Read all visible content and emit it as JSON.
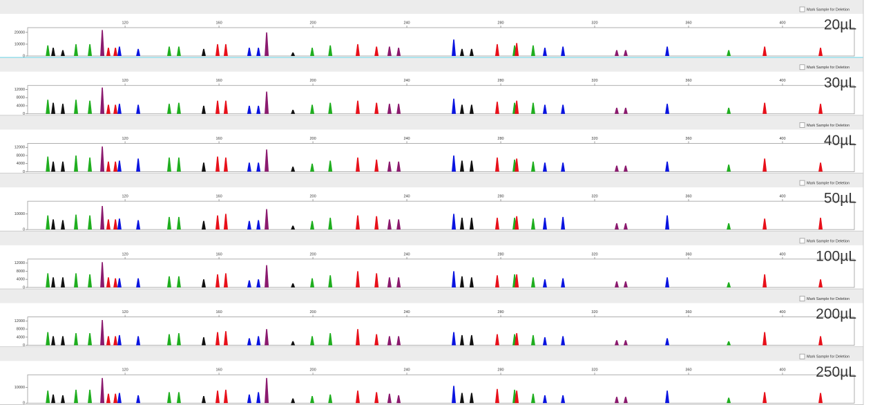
{
  "chart_data": [
    {
      "type": "peak",
      "checkbox_label": "Mark Sample for Deletion",
      "annotation": "20µL",
      "xlim": [
        78.5,
        430.6
      ],
      "xticks": [
        120,
        160,
        200,
        240,
        280,
        320,
        360,
        400
      ],
      "ylim": [
        0,
        24000
      ],
      "yticks": [
        0,
        10000,
        20000
      ],
      "x": [
        87.1,
        89.4,
        93.5,
        99.1,
        105,
        110.3,
        112.9,
        115.9,
        117.6,
        125.6,
        138.8,
        142.9,
        153.5,
        159.4,
        162.9,
        172.9,
        176.8,
        180.3,
        191.5,
        199.7,
        207.4,
        219.1,
        227.1,
        232.6,
        236.5,
        260,
        263.5,
        267.6,
        278.5,
        285.9,
        286.8,
        293.8,
        298.8,
        306.5,
        329.4,
        333.2,
        350.9,
        377.1,
        392.4,
        416.2
      ],
      "values": [
        9000,
        7000,
        5000,
        10000,
        10000,
        22000,
        7000,
        7000,
        8000,
        6000,
        8000,
        8000,
        6000,
        10000,
        10000,
        7000,
        7000,
        20000,
        3000,
        7000,
        9000,
        10000,
        8000,
        8000,
        7000,
        14000,
        6000,
        6000,
        10000,
        9000,
        11000,
        9000,
        7000,
        8000,
        5000,
        5000,
        8000,
        5000,
        8000,
        7000
      ],
      "colors": [
        "#1fae1f",
        "#111111",
        "#111111",
        "#1fae1f",
        "#1fae1f",
        "#8b1a6e",
        "#e8101a",
        "#e8101a",
        "#0a14e0",
        "#0a14e0",
        "#1fae1f",
        "#1fae1f",
        "#111111",
        "#e8101a",
        "#e8101a",
        "#0a14e0",
        "#0a14e0",
        "#8b1a6e",
        "#111111",
        "#1fae1f",
        "#1fae1f",
        "#e8101a",
        "#e8101a",
        "#8b1a6e",
        "#8b1a6e",
        "#0a14e0",
        "#111111",
        "#111111",
        "#e8101a",
        "#1fae1f",
        "#e8101a",
        "#1fae1f",
        "#0a14e0",
        "#0a14e0",
        "#8b1a6e",
        "#8b1a6e",
        "#0a14e0",
        "#1fae1f",
        "#e8101a",
        "#e8101a"
      ]
    },
    {
      "type": "peak",
      "checkbox_label": "Mark Sample for Deletion",
      "annotation": "30µL",
      "xlim": [
        78.5,
        430.6
      ],
      "xticks": [
        120,
        160,
        200,
        240,
        280,
        320,
        360,
        400
      ],
      "ylim": [
        0,
        14000
      ],
      "yticks": [
        0,
        4000,
        8000,
        12000
      ],
      "x": [
        87.1,
        89.4,
        93.5,
        99.1,
        105,
        110.3,
        112.9,
        115.9,
        117.6,
        125.6,
        138.8,
        142.9,
        153.5,
        159.4,
        162.9,
        172.9,
        176.8,
        180.3,
        191.5,
        199.7,
        207.4,
        219.1,
        227.1,
        232.6,
        236.5,
        260,
        263.5,
        267.6,
        278.5,
        285.9,
        286.8,
        293.8,
        298.8,
        306.5,
        329.4,
        333.2,
        350.9,
        377.1,
        392.4,
        416.2
      ],
      "values": [
        7000,
        5500,
        5000,
        7000,
        6500,
        13000,
        4500,
        4500,
        5000,
        4500,
        5000,
        5500,
        4000,
        6500,
        6500,
        4000,
        4000,
        11000,
        2000,
        4500,
        5500,
        6500,
        5500,
        5000,
        5000,
        7500,
        4500,
        4500,
        6000,
        5500,
        6500,
        5500,
        4500,
        4500,
        3000,
        3000,
        5000,
        3000,
        5500,
        5000
      ],
      "colors": [
        "#1fae1f",
        "#111111",
        "#111111",
        "#1fae1f",
        "#1fae1f",
        "#8b1a6e",
        "#e8101a",
        "#e8101a",
        "#0a14e0",
        "#0a14e0",
        "#1fae1f",
        "#1fae1f",
        "#111111",
        "#e8101a",
        "#e8101a",
        "#0a14e0",
        "#0a14e0",
        "#8b1a6e",
        "#111111",
        "#1fae1f",
        "#1fae1f",
        "#e8101a",
        "#e8101a",
        "#8b1a6e",
        "#8b1a6e",
        "#0a14e0",
        "#111111",
        "#111111",
        "#e8101a",
        "#1fae1f",
        "#e8101a",
        "#1fae1f",
        "#0a14e0",
        "#0a14e0",
        "#8b1a6e",
        "#8b1a6e",
        "#0a14e0",
        "#1fae1f",
        "#e8101a",
        "#e8101a"
      ]
    },
    {
      "type": "peak",
      "checkbox_label": "Mark Sample for Deletion",
      "annotation": "40µL",
      "xlim": [
        78.5,
        430.6
      ],
      "xticks": [
        120,
        160,
        200,
        240,
        280,
        320,
        360,
        400
      ],
      "ylim": [
        0,
        14000
      ],
      "yticks": [
        0,
        4000,
        8000,
        12000
      ],
      "x": [
        87.1,
        89.4,
        93.5,
        99.1,
        105,
        110.3,
        112.9,
        115.9,
        117.6,
        125.6,
        138.8,
        142.9,
        153.5,
        159.4,
        162.9,
        172.9,
        176.8,
        180.3,
        191.5,
        199.7,
        207.4,
        219.1,
        227.1,
        232.6,
        236.5,
        260,
        263.5,
        267.6,
        278.5,
        285.9,
        286.8,
        293.8,
        298.8,
        306.5,
        329.4,
        333.2,
        350.9,
        377.1,
        392.4,
        416.2
      ],
      "values": [
        7500,
        5000,
        5000,
        8000,
        7000,
        12500,
        5000,
        5000,
        5500,
        6500,
        7000,
        7000,
        4500,
        7500,
        7000,
        4500,
        4500,
        11000,
        2500,
        4000,
        5500,
        7000,
        6000,
        5000,
        5000,
        8000,
        5500,
        5500,
        7000,
        6000,
        6500,
        5000,
        4500,
        4500,
        3000,
        3000,
        5000,
        3500,
        6500,
        4500
      ],
      "colors": [
        "#1fae1f",
        "#111111",
        "#111111",
        "#1fae1f",
        "#1fae1f",
        "#8b1a6e",
        "#e8101a",
        "#e8101a",
        "#0a14e0",
        "#0a14e0",
        "#1fae1f",
        "#1fae1f",
        "#111111",
        "#e8101a",
        "#e8101a",
        "#0a14e0",
        "#0a14e0",
        "#8b1a6e",
        "#111111",
        "#1fae1f",
        "#1fae1f",
        "#e8101a",
        "#e8101a",
        "#8b1a6e",
        "#8b1a6e",
        "#0a14e0",
        "#111111",
        "#111111",
        "#e8101a",
        "#1fae1f",
        "#e8101a",
        "#1fae1f",
        "#0a14e0",
        "#0a14e0",
        "#8b1a6e",
        "#8b1a6e",
        "#0a14e0",
        "#1fae1f",
        "#e8101a",
        "#e8101a"
      ]
    },
    {
      "type": "peak",
      "checkbox_label": "Mark Sample for Deletion",
      "annotation": "50µL",
      "xlim": [
        78.5,
        430.6
      ],
      "xticks": [
        120,
        160,
        200,
        240,
        280,
        320,
        360,
        400
      ],
      "ylim": [
        0,
        18000
      ],
      "yticks": [
        0,
        10000
      ],
      "x": [
        87.1,
        89.4,
        93.5,
        99.1,
        105,
        110.3,
        112.9,
        115.9,
        117.6,
        125.6,
        138.8,
        142.9,
        153.5,
        159.4,
        162.9,
        172.9,
        176.8,
        180.3,
        191.5,
        199.7,
        207.4,
        219.1,
        227.1,
        232.6,
        236.5,
        260,
        263.5,
        267.6,
        278.5,
        285.9,
        286.8,
        293.8,
        298.8,
        306.5,
        329.4,
        333.2,
        350.9,
        377.1,
        392.4,
        416.2
      ],
      "values": [
        9000,
        6500,
        6000,
        9500,
        9000,
        15000,
        6500,
        6500,
        7000,
        6000,
        8000,
        8000,
        5500,
        9000,
        10000,
        5500,
        6000,
        13000,
        2500,
        5500,
        7500,
        9000,
        8500,
        6500,
        6500,
        10000,
        7500,
        7500,
        7500,
        7500,
        8500,
        7000,
        7500,
        8000,
        4000,
        4000,
        9000,
        4000,
        7000,
        7500
      ],
      "colors": [
        "#1fae1f",
        "#111111",
        "#111111",
        "#1fae1f",
        "#1fae1f",
        "#8b1a6e",
        "#e8101a",
        "#e8101a",
        "#0a14e0",
        "#0a14e0",
        "#1fae1f",
        "#1fae1f",
        "#111111",
        "#e8101a",
        "#e8101a",
        "#0a14e0",
        "#0a14e0",
        "#8b1a6e",
        "#111111",
        "#1fae1f",
        "#1fae1f",
        "#e8101a",
        "#e8101a",
        "#8b1a6e",
        "#8b1a6e",
        "#0a14e0",
        "#111111",
        "#111111",
        "#e8101a",
        "#1fae1f",
        "#e8101a",
        "#1fae1f",
        "#0a14e0",
        "#0a14e0",
        "#8b1a6e",
        "#8b1a6e",
        "#0a14e0",
        "#1fae1f",
        "#e8101a",
        "#e8101a"
      ]
    },
    {
      "type": "peak",
      "checkbox_label": "Mark Sample for Deletion",
      "annotation": "100µL",
      "xlim": [
        78.5,
        430.6
      ],
      "xticks": [
        120,
        160,
        200,
        240,
        280,
        320,
        360,
        400
      ],
      "ylim": [
        0,
        14000
      ],
      "yticks": [
        0,
        4000,
        8000,
        12000
      ],
      "x": [
        87.1,
        89.4,
        93.5,
        99.1,
        105,
        110.3,
        112.9,
        115.9,
        117.6,
        125.6,
        138.8,
        142.9,
        153.5,
        159.4,
        162.9,
        172.9,
        176.8,
        180.3,
        191.5,
        199.7,
        207.4,
        219.1,
        227.1,
        232.6,
        236.5,
        260,
        263.5,
        267.6,
        278.5,
        285.9,
        286.8,
        293.8,
        298.8,
        306.5,
        329.4,
        333.2,
        350.9,
        377.1,
        392.4,
        416.2
      ],
      "values": [
        7000,
        5000,
        5000,
        7000,
        6500,
        12500,
        5000,
        4500,
        4500,
        4500,
        5500,
        5500,
        4000,
        6500,
        7000,
        3500,
        4000,
        11000,
        2000,
        4500,
        6000,
        8000,
        7000,
        5000,
        5000,
        8000,
        5500,
        5000,
        6000,
        6500,
        6500,
        5000,
        4000,
        4500,
        3000,
        3000,
        5000,
        2500,
        6500,
        4000
      ],
      "colors": [
        "#1fae1f",
        "#111111",
        "#111111",
        "#1fae1f",
        "#1fae1f",
        "#8b1a6e",
        "#e8101a",
        "#e8101a",
        "#0a14e0",
        "#0a14e0",
        "#1fae1f",
        "#1fae1f",
        "#111111",
        "#e8101a",
        "#e8101a",
        "#0a14e0",
        "#0a14e0",
        "#8b1a6e",
        "#111111",
        "#1fae1f",
        "#1fae1f",
        "#e8101a",
        "#e8101a",
        "#8b1a6e",
        "#8b1a6e",
        "#0a14e0",
        "#111111",
        "#111111",
        "#e8101a",
        "#1fae1f",
        "#e8101a",
        "#1fae1f",
        "#0a14e0",
        "#0a14e0",
        "#8b1a6e",
        "#8b1a6e",
        "#0a14e0",
        "#1fae1f",
        "#e8101a",
        "#e8101a"
      ]
    },
    {
      "type": "peak",
      "checkbox_label": "Mark Sample for Deletion",
      "annotation": "200µL",
      "xlim": [
        78.5,
        430.6
      ],
      "xticks": [
        120,
        160,
        200,
        240,
        280,
        320,
        360,
        400
      ],
      "ylim": [
        0,
        14000
      ],
      "yticks": [
        0,
        4000,
        8000,
        12000
      ],
      "x": [
        87.1,
        89.4,
        93.5,
        99.1,
        105,
        110.3,
        112.9,
        115.9,
        117.6,
        125.6,
        138.8,
        142.9,
        153.5,
        159.4,
        162.9,
        172.9,
        176.8,
        180.3,
        191.5,
        199.7,
        207.4,
        219.1,
        227.1,
        232.6,
        236.5,
        260,
        263.5,
        267.6,
        278.5,
        285.9,
        286.8,
        293.8,
        298.8,
        306.5,
        329.4,
        333.2,
        350.9,
        377.1,
        392.4,
        416.2
      ],
      "values": [
        6500,
        4500,
        4500,
        6000,
        6000,
        12500,
        4500,
        4500,
        5000,
        4500,
        5500,
        6000,
        4000,
        6500,
        7000,
        3500,
        4500,
        8000,
        2000,
        4500,
        6000,
        8000,
        5500,
        4500,
        4500,
        6500,
        5000,
        5000,
        5500,
        5500,
        6000,
        5000,
        4000,
        4500,
        2500,
        2500,
        3500,
        2000,
        6500,
        4500
      ],
      "colors": [
        "#1fae1f",
        "#111111",
        "#111111",
        "#1fae1f",
        "#1fae1f",
        "#8b1a6e",
        "#e8101a",
        "#e8101a",
        "#0a14e0",
        "#0a14e0",
        "#1fae1f",
        "#1fae1f",
        "#111111",
        "#e8101a",
        "#e8101a",
        "#0a14e0",
        "#0a14e0",
        "#8b1a6e",
        "#111111",
        "#1fae1f",
        "#1fae1f",
        "#e8101a",
        "#e8101a",
        "#8b1a6e",
        "#8b1a6e",
        "#0a14e0",
        "#111111",
        "#111111",
        "#e8101a",
        "#1fae1f",
        "#e8101a",
        "#1fae1f",
        "#0a14e0",
        "#0a14e0",
        "#8b1a6e",
        "#8b1a6e",
        "#0a14e0",
        "#1fae1f",
        "#e8101a",
        "#e8101a"
      ]
    },
    {
      "type": "peak",
      "checkbox_label": "Mark Sample for Deletion",
      "annotation": "250µL",
      "xlim": [
        78.5,
        430.6
      ],
      "xticks": [
        120,
        160,
        200,
        240,
        280,
        320,
        360,
        400
      ],
      "ylim": [
        0,
        18000
      ],
      "yticks": [
        0,
        10000
      ],
      "x": [
        87.1,
        89.4,
        93.5,
        99.1,
        105,
        110.3,
        112.9,
        115.9,
        117.6,
        125.6,
        138.8,
        142.9,
        153.5,
        159.4,
        162.9,
        172.9,
        176.8,
        180.3,
        191.5,
        199.7,
        207.4,
        219.1,
        227.1,
        232.6,
        236.5,
        260,
        263.5,
        267.6,
        278.5,
        285.9,
        286.8,
        293.8,
        298.8,
        306.5,
        329.4,
        333.2,
        350.9,
        377.1,
        392.4,
        416.2
      ],
      "values": [
        8000,
        5500,
        5000,
        8500,
        8500,
        16000,
        6000,
        6000,
        6500,
        5000,
        7000,
        7000,
        4500,
        8000,
        8500,
        5500,
        7000,
        16000,
        3000,
        4500,
        5500,
        8000,
        7000,
        6000,
        5000,
        11000,
        6500,
        6500,
        9000,
        8500,
        8000,
        6000,
        5000,
        5000,
        4000,
        4000,
        8000,
        3500,
        7000,
        6500
      ],
      "colors": [
        "#1fae1f",
        "#111111",
        "#111111",
        "#1fae1f",
        "#1fae1f",
        "#8b1a6e",
        "#e8101a",
        "#e8101a",
        "#0a14e0",
        "#0a14e0",
        "#1fae1f",
        "#1fae1f",
        "#111111",
        "#e8101a",
        "#e8101a",
        "#0a14e0",
        "#0a14e0",
        "#8b1a6e",
        "#111111",
        "#1fae1f",
        "#1fae1f",
        "#e8101a",
        "#e8101a",
        "#8b1a6e",
        "#8b1a6e",
        "#0a14e0",
        "#111111",
        "#111111",
        "#e8101a",
        "#1fae1f",
        "#e8101a",
        "#1fae1f",
        "#0a14e0",
        "#0a14e0",
        "#8b1a6e",
        "#8b1a6e",
        "#0a14e0",
        "#1fae1f",
        "#e8101a",
        "#e8101a"
      ]
    }
  ]
}
